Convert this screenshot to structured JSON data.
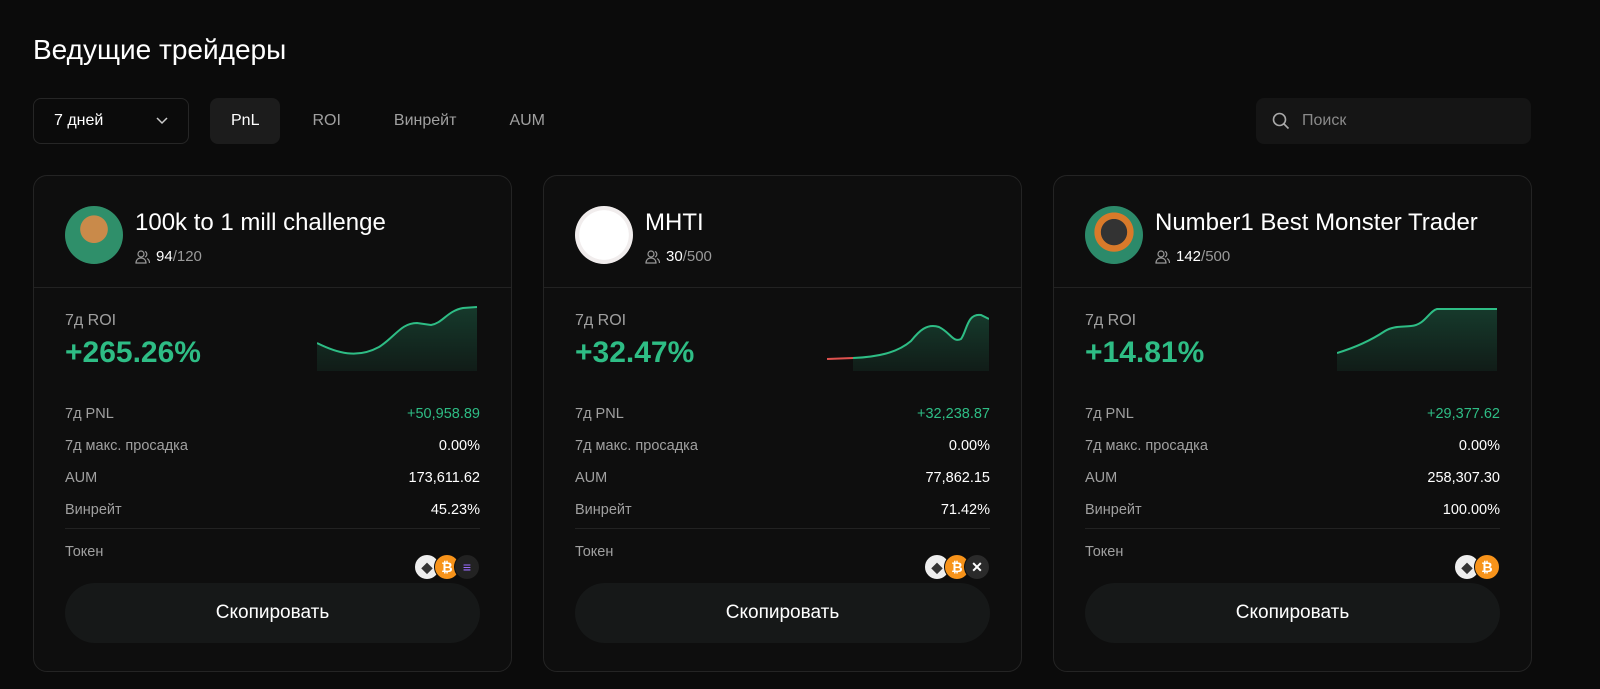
{
  "title": "Ведущие трейдеры",
  "period": {
    "selected": "7 дней"
  },
  "tabs": [
    {
      "label": "PnL",
      "active": true
    },
    {
      "label": "ROI"
    },
    {
      "label": "Винрейт"
    },
    {
      "label": "AUM"
    }
  ],
  "search": {
    "placeholder": "Поиск"
  },
  "colors": {
    "positive": "#2ebd85",
    "negative": "#e0524f"
  },
  "labels": {
    "roi": "7д ROI",
    "pnl": "7д PNL",
    "drawdown": "7д макс. просадка",
    "aum": "AUM",
    "winrate": "Винрейт",
    "token": "Токен",
    "copy": "Скопировать"
  },
  "traders": [
    {
      "name": "100k to 1 mill challenge",
      "copiers": "94",
      "max": "/120",
      "roi": "+265.26%",
      "pnl": "+50,958.89",
      "drawdown": "0.00%",
      "aum": "173,611.62",
      "winrate": "45.23%",
      "tokens": [
        "eth",
        "btc",
        "sol"
      ]
    },
    {
      "name": "MHTI",
      "copiers": "30",
      "max": "/500",
      "roi": "+32.47%",
      "pnl": "+32,238.87",
      "drawdown": "0.00%",
      "aum": "77,862.15",
      "winrate": "71.42%",
      "tokens": [
        "eth",
        "btc",
        "xrp"
      ]
    },
    {
      "name": "Number1 Best Monster Trader",
      "copiers": "142",
      "max": "/500",
      "roi": "+14.81%",
      "pnl": "+29,377.62",
      "drawdown": "0.00%",
      "aum": "258,307.30",
      "winrate": "100.00%",
      "tokens": [
        "eth",
        "btc"
      ]
    }
  ]
}
